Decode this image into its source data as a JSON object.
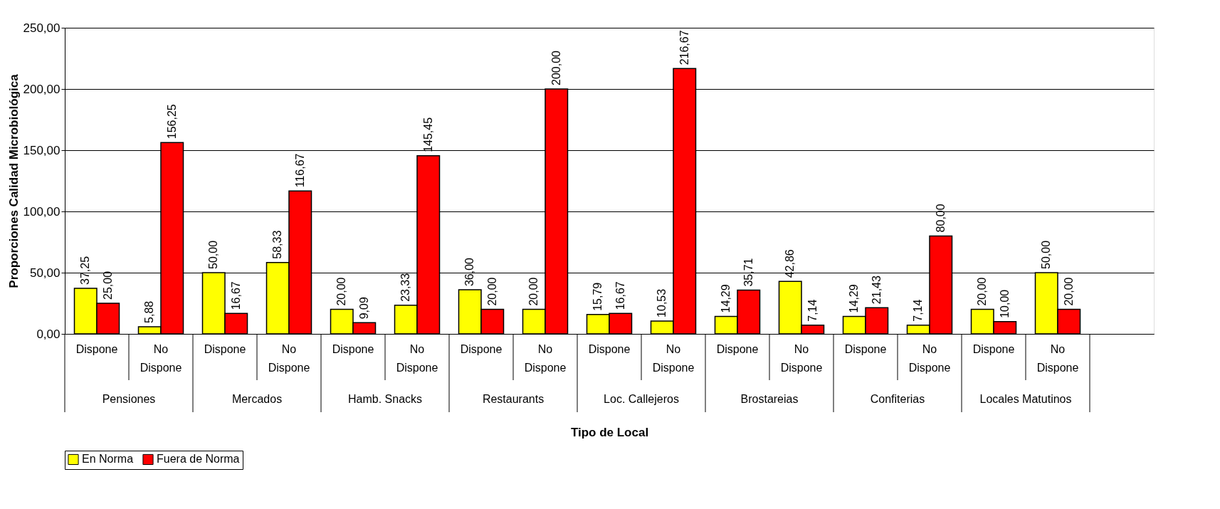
{
  "chart_data": {
    "type": "bar",
    "xlabel": "Tipo de Local",
    "ylabel": "Proporciones Calidad Microbiológica",
    "categories": [
      "Dispone",
      "No Dispone",
      "Dispone",
      "No Dispone",
      "Dispone",
      "No Dispone",
      "Dispone",
      "No Dispone",
      "Dispone",
      "No Dispone",
      "Dispone",
      "No Dispone",
      "Dispone",
      "No Dispone",
      "Dispone",
      "No Dispone",
      null
    ],
    "annotations": [
      "Pensiones",
      "Mercados",
      "Hamb. Snacks",
      "Restaurants",
      "Loc. Callejeros",
      "Brostareias",
      "Confiterias",
      "Locales Matutinos"
    ],
    "series": [
      {
        "name": "En Norma",
        "color": "#ffff00",
        "values": [
          37.25,
          5.88,
          50,
          58.33,
          20,
          23.33,
          36,
          20,
          15.79,
          10.53,
          14.29,
          42.86,
          14.29,
          7.14,
          20,
          50,
          null
        ],
        "value_labels": [
          "37,25",
          "5,88",
          "50,00",
          "58,33",
          "20,00",
          "23,33",
          "36,00",
          "20,00",
          "15,79",
          "10,53",
          "14,29",
          "42,86",
          "14,29",
          "7,14",
          "20,00",
          "50,00",
          null
        ]
      },
      {
        "name": "Fuera de Norma",
        "color": "#ff0000",
        "values": [
          25,
          156.25,
          16.67,
          116.67,
          9.09,
          145.45,
          20,
          200,
          16.67,
          216.67,
          35.71,
          7.14,
          21.43,
          80,
          10,
          20,
          null
        ],
        "value_labels": [
          "25,00",
          "156,25",
          "16,67",
          "116,67",
          "9,09",
          "145,45",
          "20,00",
          "200,00",
          "16,67",
          "216,67",
          "35,71",
          "7,14",
          "21,43",
          "80,00",
          "10,00",
          "20,00",
          null
        ]
      }
    ],
    "ylim": [
      0,
      250
    ],
    "yticks": [
      {
        "value": 0,
        "label": "0,00"
      },
      {
        "value": 50,
        "label": "50,00"
      },
      {
        "value": 100,
        "label": "100,00"
      },
      {
        "value": 150,
        "label": "150,00"
      },
      {
        "value": 200,
        "label": "200,00"
      },
      {
        "value": 250,
        "label": "250,00"
      }
    ],
    "grid": "y",
    "legend": "bottom"
  }
}
